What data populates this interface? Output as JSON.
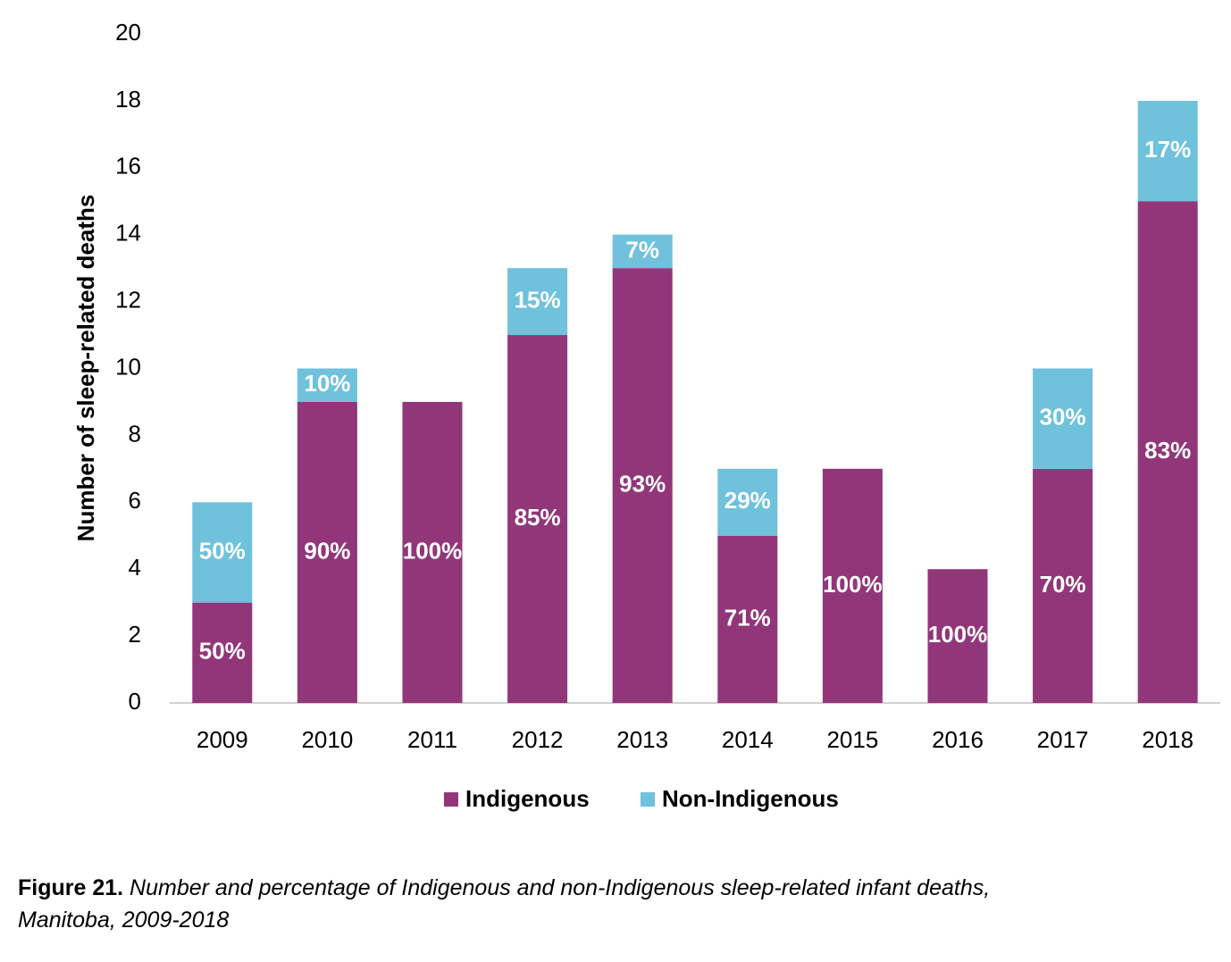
{
  "chart_data": {
    "type": "stacked-bar",
    "y_label": "Number of sleep-related deaths",
    "categories": [
      "2009",
      "2010",
      "2011",
      "2012",
      "2013",
      "2014",
      "2015",
      "2016",
      "2017",
      "2018"
    ],
    "series": [
      {
        "name": "Indigenous",
        "color": "#92367a",
        "values": [
          3,
          9,
          9,
          11,
          13,
          5,
          7,
          4,
          7,
          15
        ],
        "labels": [
          "50%",
          "90%",
          "100%",
          "85%",
          "93%",
          "71%",
          "100%",
          "100%",
          "70%",
          "83%"
        ]
      },
      {
        "name": "Non-Indigenous",
        "color": "#6fc1dc",
        "values": [
          3,
          1,
          0,
          2,
          1,
          2,
          0,
          0,
          3,
          3
        ],
        "labels": [
          "50%",
          "10%",
          null,
          "15%",
          "7%",
          "29%",
          null,
          null,
          "30%",
          "17%"
        ]
      }
    ],
    "ylim": [
      0,
      20
    ],
    "yticks": [
      0,
      2,
      4,
      6,
      8,
      10,
      12,
      14,
      16,
      18,
      20
    ],
    "grid": false,
    "legend": "bottom"
  },
  "caption": {
    "label": "Figure 21.",
    "text": "Number and percentage of Indigenous and non-Indigenous sleep-related infant deaths,",
    "text2": "Manitoba, 2009-2018"
  }
}
